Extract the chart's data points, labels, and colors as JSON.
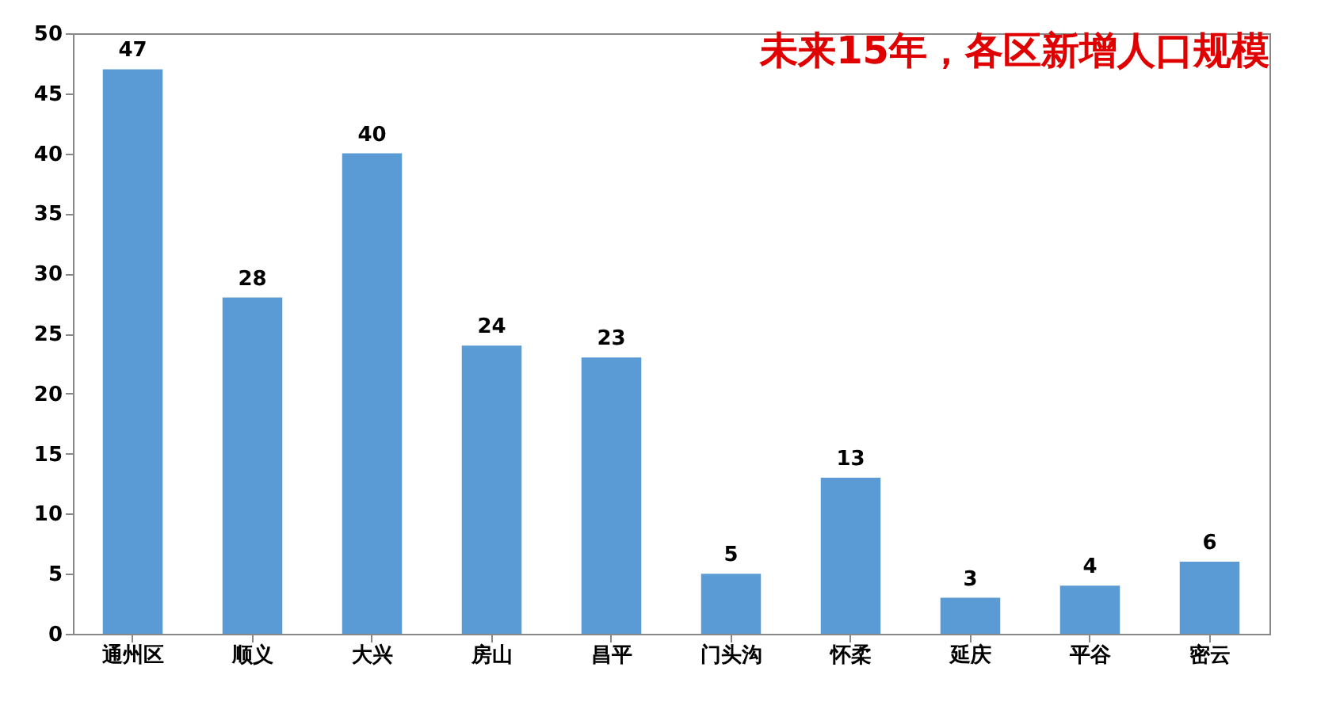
{
  "chart_data": {
    "type": "bar",
    "title": "未来15年，各区新增人口规模",
    "categories": [
      "通州区",
      "顺义",
      "大兴",
      "房山",
      "昌平",
      "门头沟",
      "怀柔",
      "延庆",
      "平谷",
      "密云"
    ],
    "values": [
      47,
      28,
      40,
      24,
      23,
      5,
      13,
      3,
      4,
      6
    ],
    "color": "#5b9bd5",
    "ylim": [
      0,
      50
    ],
    "yticks": [
      0,
      5,
      10,
      15,
      20,
      25,
      30,
      35,
      40,
      45,
      50
    ],
    "data_labels": true,
    "grid": false
  }
}
